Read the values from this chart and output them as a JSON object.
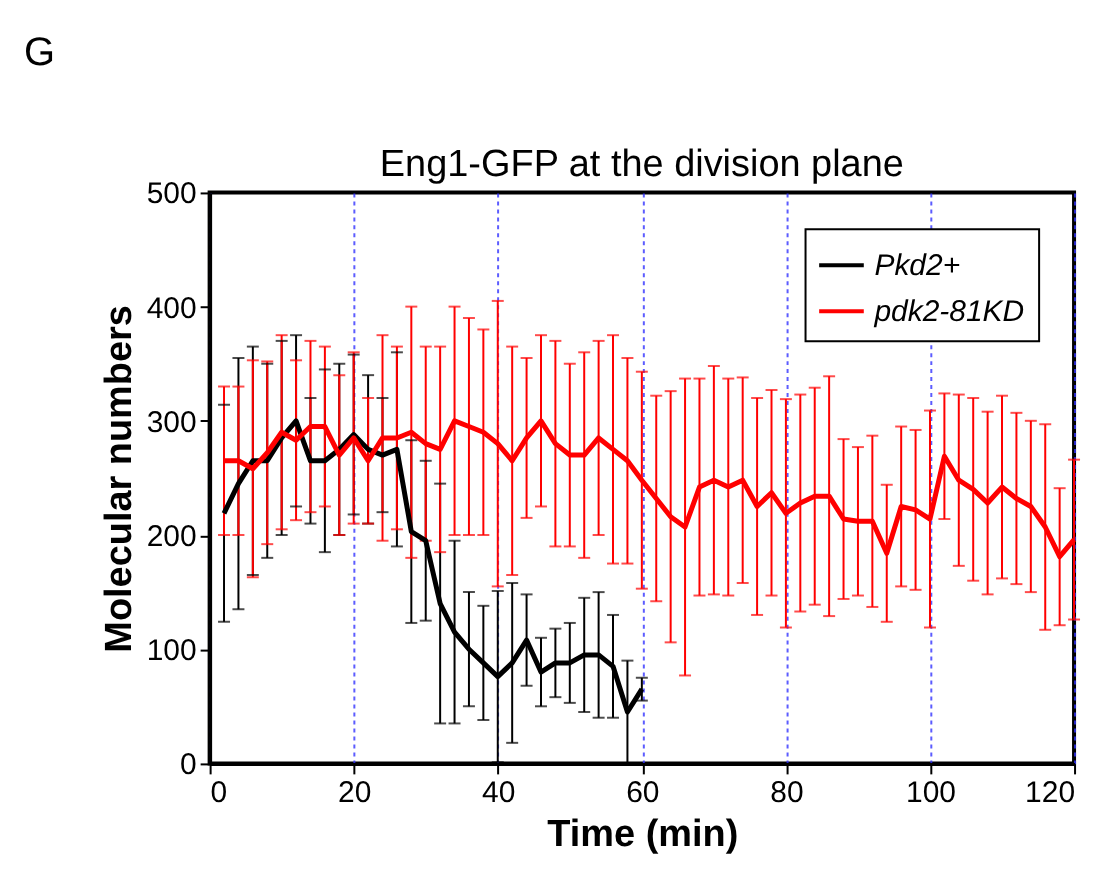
{
  "chart_data": {
    "type": "line",
    "title": "Eng1-GFP at the division plane",
    "xlabel": "Time (min)",
    "ylabel": "Molecular numbers",
    "annotations": [
      "G"
    ],
    "x": [
      2,
      4,
      6,
      8,
      10,
      12,
      14,
      16,
      18,
      20,
      22,
      24,
      26,
      28,
      30,
      32,
      34,
      36,
      38,
      40,
      42,
      44,
      46,
      48,
      50,
      52,
      54,
      56,
      58,
      60,
      62,
      64,
      66,
      68,
      70,
      72,
      74,
      76,
      78,
      80,
      82,
      84,
      86,
      88,
      90,
      92,
      94,
      96,
      98,
      100,
      102,
      104,
      106,
      108,
      110,
      112,
      114,
      116,
      118,
      120
    ],
    "series": [
      {
        "name": "Pkd2+",
        "color": "#000000",
        "x": [
          2,
          4,
          6,
          8,
          10,
          12,
          14,
          16,
          18,
          20,
          22,
          24,
          26,
          28,
          30,
          32,
          34,
          36,
          38,
          40,
          42,
          44,
          46,
          48,
          50,
          52,
          54,
          56,
          58,
          60
        ],
        "values": [
          219,
          245,
          265,
          265,
          285,
          300,
          265,
          265,
          275,
          288,
          275,
          270,
          275,
          203,
          195,
          140,
          115,
          100,
          88,
          76,
          88,
          108,
          80,
          88,
          88,
          95,
          95,
          85,
          45,
          65
        ],
        "errors": [
          95,
          110,
          100,
          85,
          85,
          75,
          55,
          80,
          75,
          70,
          65,
          50,
          85,
          80,
          70,
          105,
          80,
          50,
          50,
          75,
          70,
          40,
          30,
          30,
          35,
          50,
          55,
          45,
          45,
          10
        ]
      },
      {
        "name": "pdk2-81KD",
        "color": "#ff0000",
        "values": [
          265,
          265,
          258,
          272,
          290,
          283,
          295,
          295,
          270,
          285,
          265,
          285,
          285,
          290,
          280,
          275,
          300,
          295,
          290,
          280,
          265,
          285,
          300,
          280,
          270,
          270,
          285,
          275,
          265,
          248,
          232,
          216,
          207,
          242,
          248,
          242,
          248,
          225,
          237,
          219,
          228,
          234,
          234,
          214,
          212,
          212,
          184,
          225,
          222,
          214,
          269,
          248,
          240,
          228,
          242,
          232,
          225,
          207,
          181,
          196
        ],
        "errors": [
          65,
          65,
          95,
          80,
          85,
          70,
          75,
          70,
          70,
          75,
          55,
          90,
          80,
          110,
          85,
          90,
          100,
          95,
          90,
          125,
          100,
          70,
          75,
          90,
          80,
          90,
          85,
          100,
          90,
          95,
          90,
          110,
          130,
          95,
          100,
          95,
          90,
          95,
          90,
          100,
          95,
          95,
          105,
          70,
          65,
          75,
          60,
          70,
          70,
          95,
          55,
          75,
          80,
          80,
          80,
          75,
          75,
          90,
          60,
          70
        ]
      }
    ],
    "xlim": [
      0,
      120
    ],
    "ylim": [
      0,
      500
    ],
    "xticks": [
      0,
      20,
      40,
      60,
      80,
      100,
      120
    ],
    "yticks": [
      0,
      100,
      200,
      300,
      400,
      500
    ],
    "grid": "x",
    "legend": "top right",
    "marker": "none",
    "line_style": "solid"
  }
}
